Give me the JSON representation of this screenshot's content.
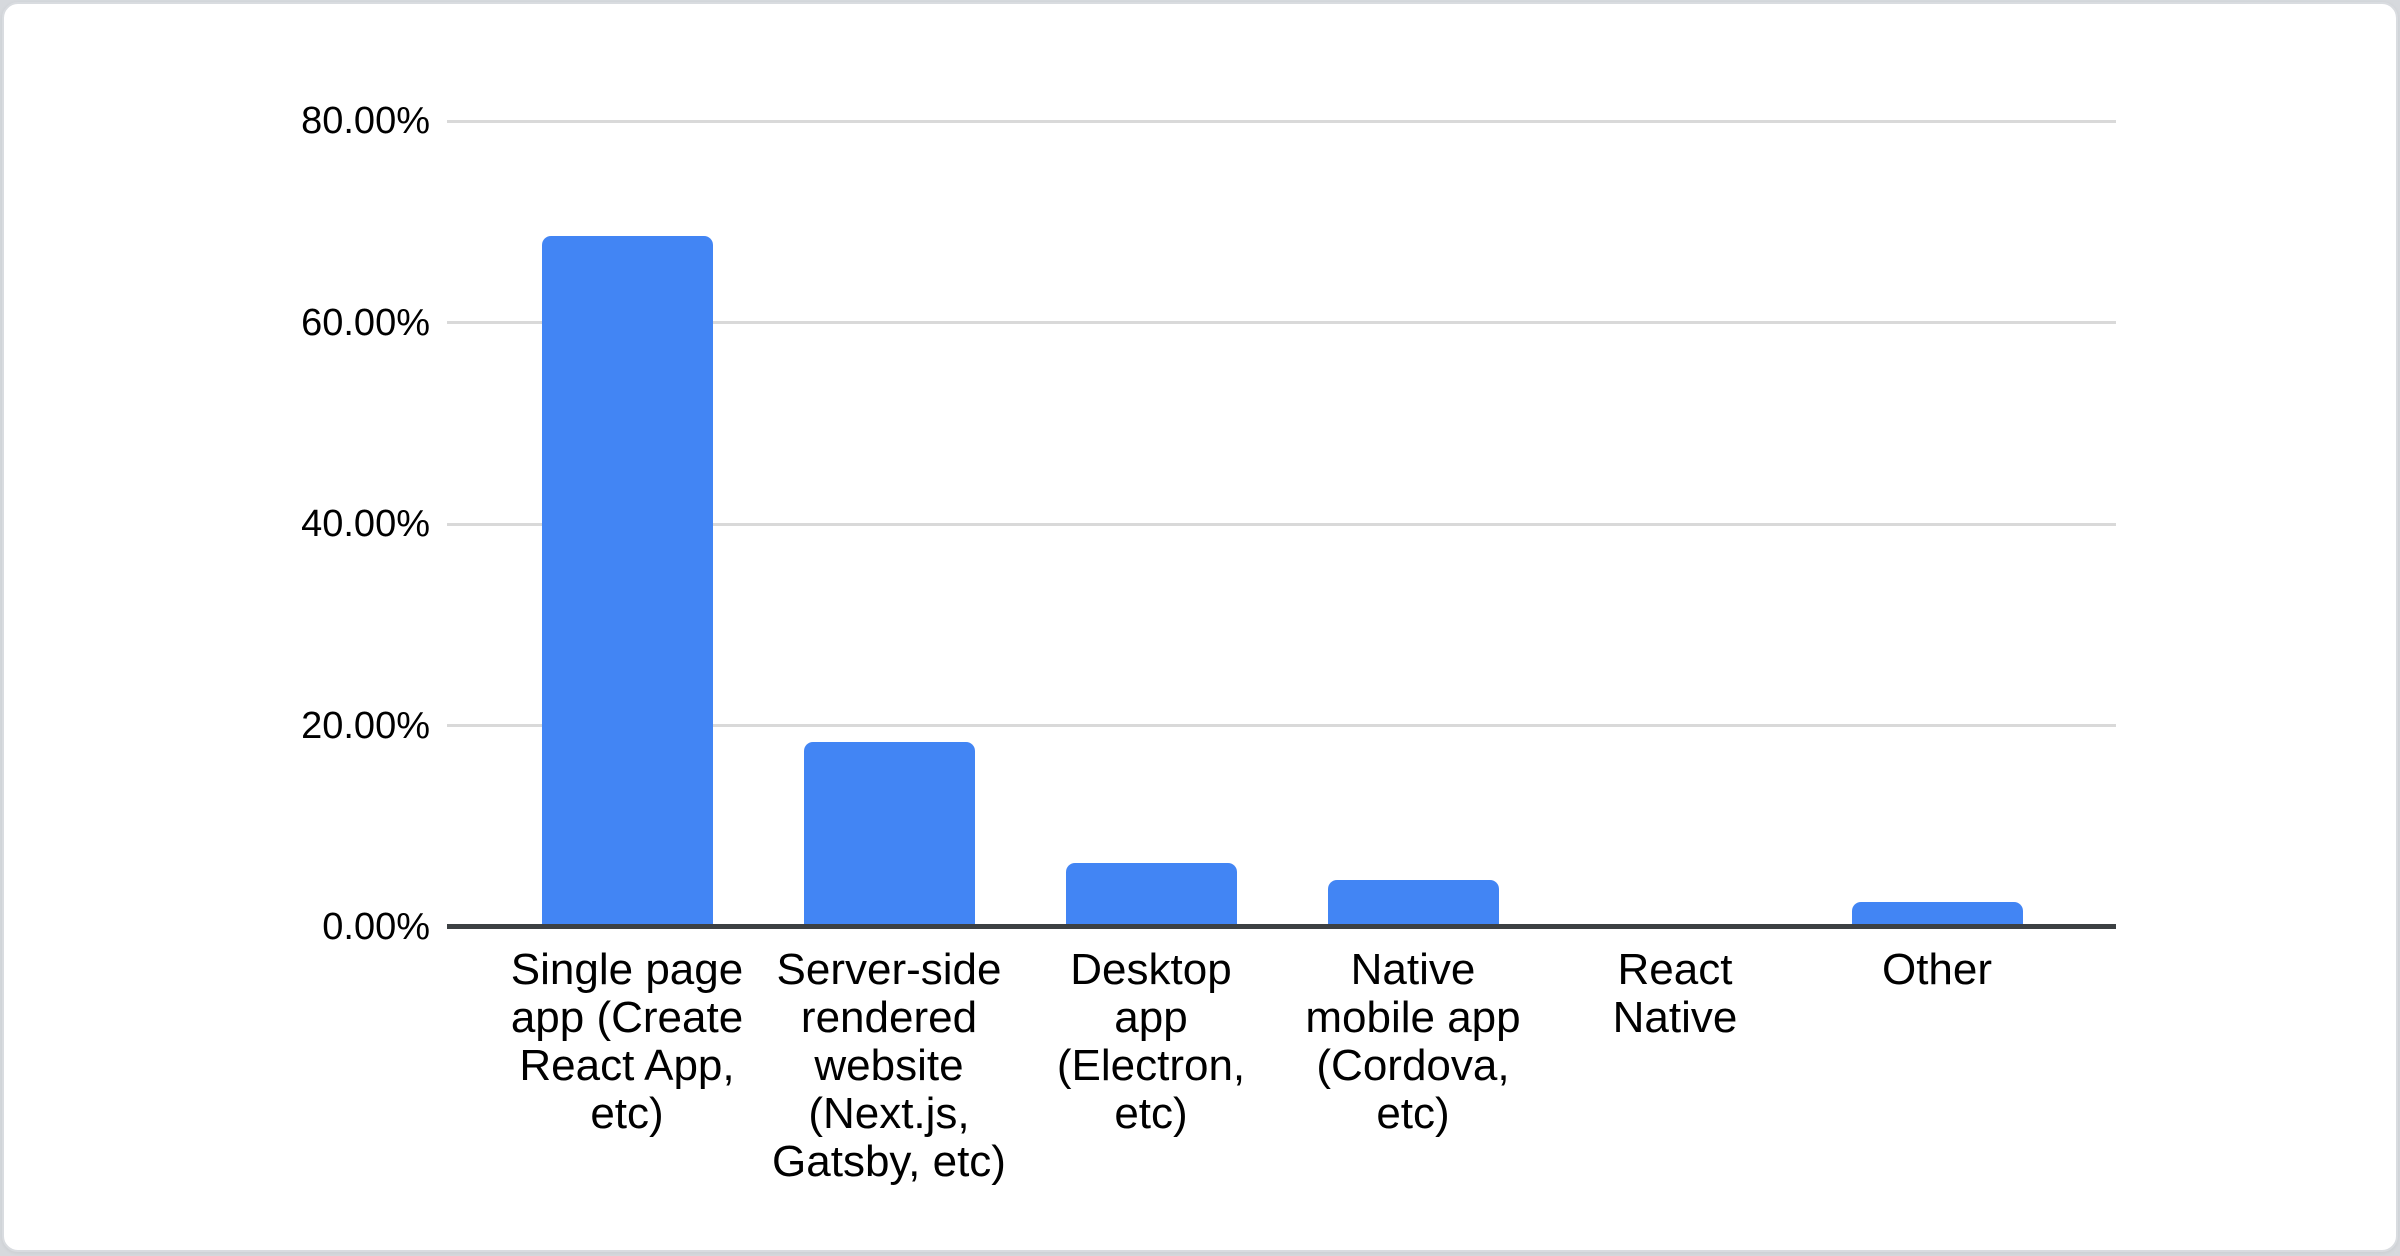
{
  "page": {
    "background_color": "#d6d9dd",
    "card_color": "#ffffff",
    "card_border_color": "#d9dce0"
  },
  "chart_data": {
    "type": "bar",
    "title": "",
    "xlabel": "",
    "ylabel": "",
    "categories": [
      "Single page app (Create React App, etc)",
      "Server-side rendered website (Next.js, Gatsby, etc)",
      "Desktop app (Electron, etc)",
      "Native mobile app (Cordova, etc)",
      "React Native",
      "Other"
    ],
    "display_labels": [
      "Single page\napp (Create\nReact App,\netc)",
      "Server-side\nrendered\nwebsite\n(Next.js,\nGatsby, etc)",
      "Desktop\napp\n(Electron,\netc)",
      "Native\nmobile app\n(Cordova,\netc)",
      "React\nNative",
      "Other"
    ],
    "values": [
      68.6,
      18.4,
      6.4,
      4.7,
      0,
      2.5
    ],
    "unit": "%",
    "ylim": [
      0,
      80
    ],
    "yticks": [
      {
        "value": 0,
        "label": "0.00%"
      },
      {
        "value": 20,
        "label": "20.00%"
      },
      {
        "value": 40,
        "label": "40.00%"
      },
      {
        "value": 60,
        "label": "60.00%"
      },
      {
        "value": 80,
        "label": "80.00%"
      }
    ],
    "grid": true,
    "legend": "none",
    "bar_color": "#4285f4",
    "gridline_color": "#d9d9d9",
    "axis_line_color": "#3c4043",
    "label_color": "#000000"
  }
}
